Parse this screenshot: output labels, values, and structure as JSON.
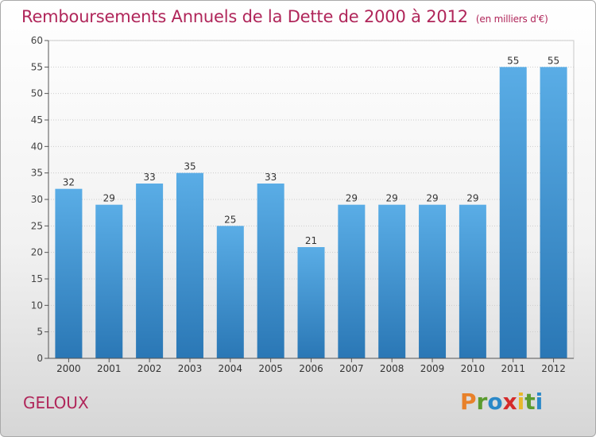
{
  "header": {
    "title": "Remboursements Annuels de la Dette de 2000 à 2012",
    "unit": "(en milliers d'€)"
  },
  "footer": {
    "commune": "GELOUX",
    "logo_text": "Proxiti"
  },
  "colors": {
    "bar_light": "#5aade6",
    "bar_dark": "#2a77b5",
    "title": "#b0265a"
  },
  "chart_data": {
    "type": "bar",
    "title": "Remboursements Annuels de la Dette de 2000 à 2012",
    "categories": [
      "2000",
      "2001",
      "2002",
      "2003",
      "2004",
      "2005",
      "2006",
      "2007",
      "2008",
      "2009",
      "2010",
      "2011",
      "2012"
    ],
    "values": [
      32,
      29,
      33,
      35,
      25,
      33,
      21,
      29,
      29,
      29,
      29,
      55,
      55
    ],
    "ylim": [
      0,
      60
    ],
    "yticks": [
      0,
      5,
      10,
      15,
      20,
      25,
      30,
      35,
      40,
      45,
      50,
      55,
      60
    ],
    "grid": true,
    "xlabel": "",
    "ylabel": ""
  }
}
